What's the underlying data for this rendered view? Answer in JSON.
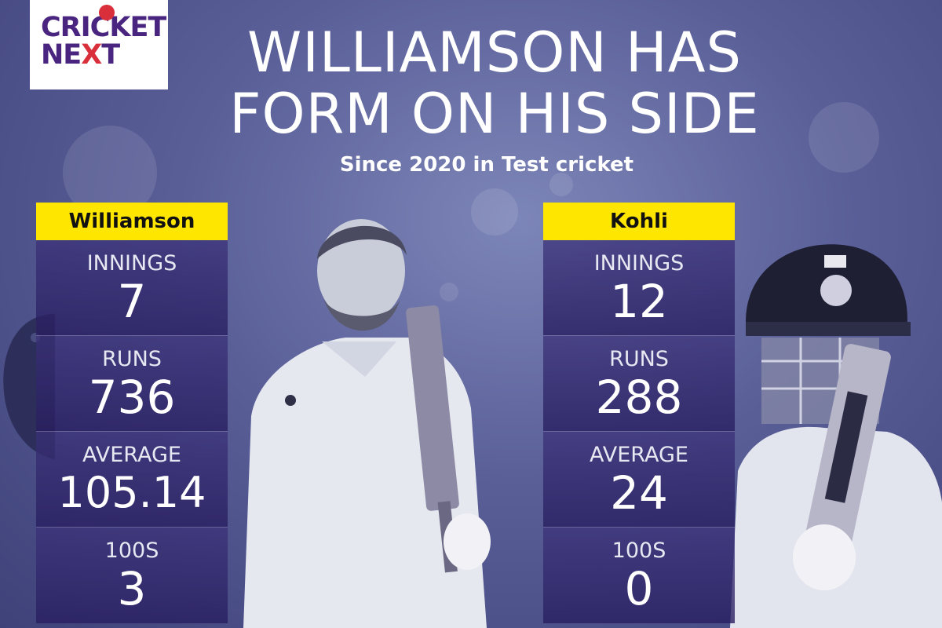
{
  "logo": {
    "line1": "CRICKET",
    "line2_a": "NE",
    "line2_x": "X",
    "line2_b": "T"
  },
  "headline": {
    "line1": "WILLIAMSON HAS",
    "line2": "FORM ON HIS SIDE"
  },
  "subtitle": "Since 2020 in Test cricket",
  "colors": {
    "background": "#5a5f98",
    "name_tag": "#ffe600",
    "panel": "#2f2670",
    "logo_purple": "#4a2580",
    "logo_red": "#d92f3a"
  },
  "players": [
    {
      "name": "Williamson",
      "stats": [
        {
          "label": "INNINGS",
          "value": "7"
        },
        {
          "label": "RUNS",
          "value": "736"
        },
        {
          "label": "AVERAGE",
          "value": "105.14"
        },
        {
          "label": "100S",
          "value": "3"
        }
      ]
    },
    {
      "name": "Kohli",
      "stats": [
        {
          "label": "INNINGS",
          "value": "12"
        },
        {
          "label": "RUNS",
          "value": "288"
        },
        {
          "label": "AVERAGE",
          "value": "24"
        },
        {
          "label": "100S",
          "value": "0"
        }
      ]
    }
  ],
  "icons": [
    "cricket-ball-icon"
  ]
}
